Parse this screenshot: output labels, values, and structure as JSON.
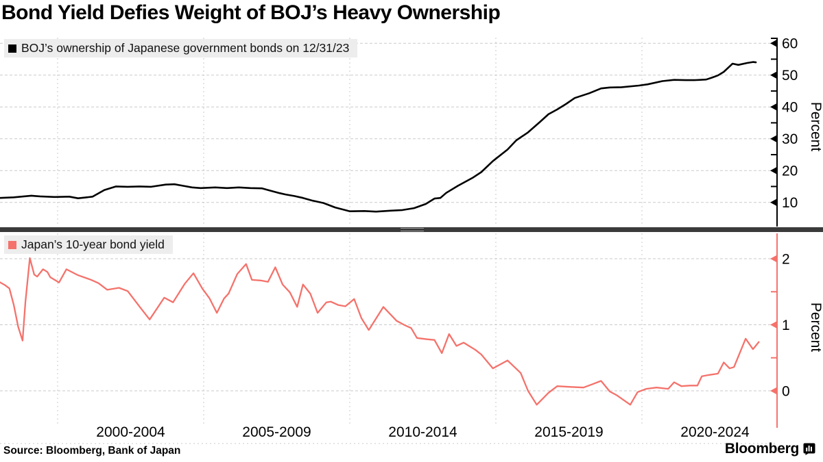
{
  "title": "Bond Yield Defies Weight of BOJ’s Heavy Ownership",
  "source": "Source: Bloomberg, Bank of Japan",
  "brand": {
    "logo_text": "Bloomberg"
  },
  "colors": {
    "black_line": "#000000",
    "red_line": "#f4726b",
    "grid": "#c9c9c9",
    "legend_bg": "#ededed",
    "divider": "#3a3a3a",
    "text": "#000000"
  },
  "x_axis": {
    "tick_labels": [
      "2000-2004",
      "2005-2009",
      "2010-2014",
      "2015-2019",
      "2020-2024"
    ],
    "gridline_years": [
      2000,
      2005,
      2010,
      2015,
      2020
    ]
  },
  "chart_data": [
    {
      "type": "line",
      "panel": "top",
      "name": "BOJ’s ownership of Japanese government bonds on 12/31/23",
      "color": "#000000",
      "ylabel": "Percent",
      "yticks": [
        10,
        20,
        30,
        40,
        50,
        60
      ],
      "yticks_minor": [
        15,
        25,
        35,
        45,
        55
      ],
      "ylim": [
        4,
        62
      ],
      "x_years": [
        1998.0,
        1998.5,
        1999.1,
        1999.4,
        1999.9,
        2000.4,
        2000.7,
        2001.0,
        2001.2,
        2001.6,
        2002.0,
        2002.4,
        2002.8,
        2003.2,
        2003.7,
        2004.0,
        2004.3,
        2004.6,
        2004.9,
        2005.4,
        2005.8,
        2006.2,
        2006.6,
        2007.0,
        2007.2,
        2007.6,
        2007.8,
        2008.1,
        2008.4,
        2008.7,
        2009.1,
        2009.5,
        2010.0,
        2010.5,
        2010.9,
        2011.4,
        2011.8,
        2012.2,
        2012.6,
        2012.9,
        2013.1,
        2013.3,
        2013.7,
        2014.2,
        2014.5,
        2014.9,
        2015.4,
        2015.7,
        2016.1,
        2016.5,
        2016.8,
        2017.1,
        2017.4,
        2017.7,
        2018.2,
        2018.6,
        2018.9,
        2019.3,
        2019.9,
        2020.2,
        2020.7,
        2021.1,
        2021.5,
        2021.8,
        2022.2,
        2022.4,
        2022.6,
        2022.8,
        2023.0,
        2023.1,
        2023.3,
        2023.6,
        2023.8,
        2023.9
      ],
      "values": [
        11.4,
        11.6,
        12.1,
        11.9,
        11.7,
        11.8,
        11.3,
        11.6,
        11.8,
        13.9,
        15.0,
        14.9,
        15.0,
        14.9,
        15.6,
        15.7,
        15.2,
        14.7,
        14.5,
        14.7,
        14.5,
        14.7,
        14.5,
        14.4,
        13.9,
        12.9,
        12.5,
        12.0,
        11.4,
        10.6,
        9.8,
        8.4,
        7.2,
        7.3,
        7.1,
        7.4,
        7.6,
        8.2,
        9.5,
        11.2,
        11.4,
        13.0,
        15.2,
        17.7,
        19.5,
        23.0,
        26.6,
        29.5,
        32.0,
        35.2,
        37.7,
        39.2,
        40.9,
        42.8,
        44.3,
        45.8,
        46.1,
        46.2,
        46.7,
        47.1,
        48.1,
        48.5,
        48.4,
        48.4,
        48.6,
        49.2,
        49.9,
        51.0,
        52.7,
        53.6,
        53.2,
        53.8,
        54.1,
        54.0
      ]
    },
    {
      "type": "line",
      "panel": "bottom",
      "name": "Japan’s 10-year bond yield",
      "color": "#f4726b",
      "ylabel": "Percent",
      "yticks": [
        0,
        1,
        2
      ],
      "yticks_minor": [
        0.5,
        1.5
      ],
      "ylim": [
        -0.55,
        2.4
      ],
      "x_years": [
        1998.0,
        1998.2,
        1998.35,
        1998.5,
        1998.65,
        1998.8,
        1998.9,
        1999.05,
        1999.2,
        1999.3,
        1999.5,
        1999.65,
        1999.75,
        1999.9,
        2000.05,
        2000.3,
        2000.7,
        2001.15,
        2001.4,
        2001.7,
        2002.1,
        2002.4,
        2002.85,
        2003.15,
        2003.65,
        2003.95,
        2004.35,
        2004.65,
        2004.95,
        2005.2,
        2005.45,
        2005.7,
        2005.85,
        2006.15,
        2006.45,
        2006.65,
        2006.95,
        2007.2,
        2007.45,
        2007.7,
        2007.95,
        2008.2,
        2008.4,
        2008.65,
        2008.9,
        2009.2,
        2009.35,
        2009.6,
        2009.85,
        2010.15,
        2010.4,
        2010.65,
        2011.15,
        2011.6,
        2011.9,
        2012.1,
        2012.3,
        2012.65,
        2012.9,
        2013.15,
        2013.4,
        2013.65,
        2013.9,
        2014.3,
        2014.5,
        2014.9,
        2015.4,
        2015.85,
        2016.1,
        2016.4,
        2016.8,
        2017.1,
        2017.5,
        2018.0,
        2018.3,
        2018.6,
        2018.9,
        2019.15,
        2019.6,
        2019.85,
        2020.15,
        2020.5,
        2020.9,
        2021.1,
        2021.35,
        2021.65,
        2021.9,
        2022.05,
        2022.3,
        2022.6,
        2022.8,
        2023.0,
        2023.15,
        2023.55,
        2023.8,
        2024.0
      ],
      "values": [
        1.65,
        1.6,
        1.55,
        1.3,
        0.97,
        0.76,
        1.35,
        2.01,
        1.76,
        1.73,
        1.84,
        1.8,
        1.72,
        1.68,
        1.64,
        1.84,
        1.75,
        1.68,
        1.63,
        1.53,
        1.56,
        1.51,
        1.25,
        1.08,
        1.41,
        1.34,
        1.62,
        1.78,
        1.55,
        1.4,
        1.18,
        1.4,
        1.47,
        1.77,
        1.92,
        1.68,
        1.67,
        1.65,
        1.87,
        1.61,
        1.49,
        1.27,
        1.61,
        1.47,
        1.18,
        1.34,
        1.35,
        1.3,
        1.28,
        1.39,
        1.1,
        0.92,
        1.27,
        1.06,
        0.99,
        0.95,
        0.8,
        0.78,
        0.77,
        0.57,
        0.86,
        0.68,
        0.73,
        0.62,
        0.55,
        0.34,
        0.46,
        0.27,
        0.0,
        -0.21,
        -0.03,
        0.07,
        0.06,
        0.05,
        0.1,
        0.15,
        -0.01,
        -0.07,
        -0.21,
        -0.02,
        0.03,
        0.05,
        0.03,
        0.13,
        0.07,
        0.08,
        0.08,
        0.22,
        0.24,
        0.26,
        0.43,
        0.34,
        0.36,
        0.79,
        0.63,
        0.74
      ]
    }
  ]
}
